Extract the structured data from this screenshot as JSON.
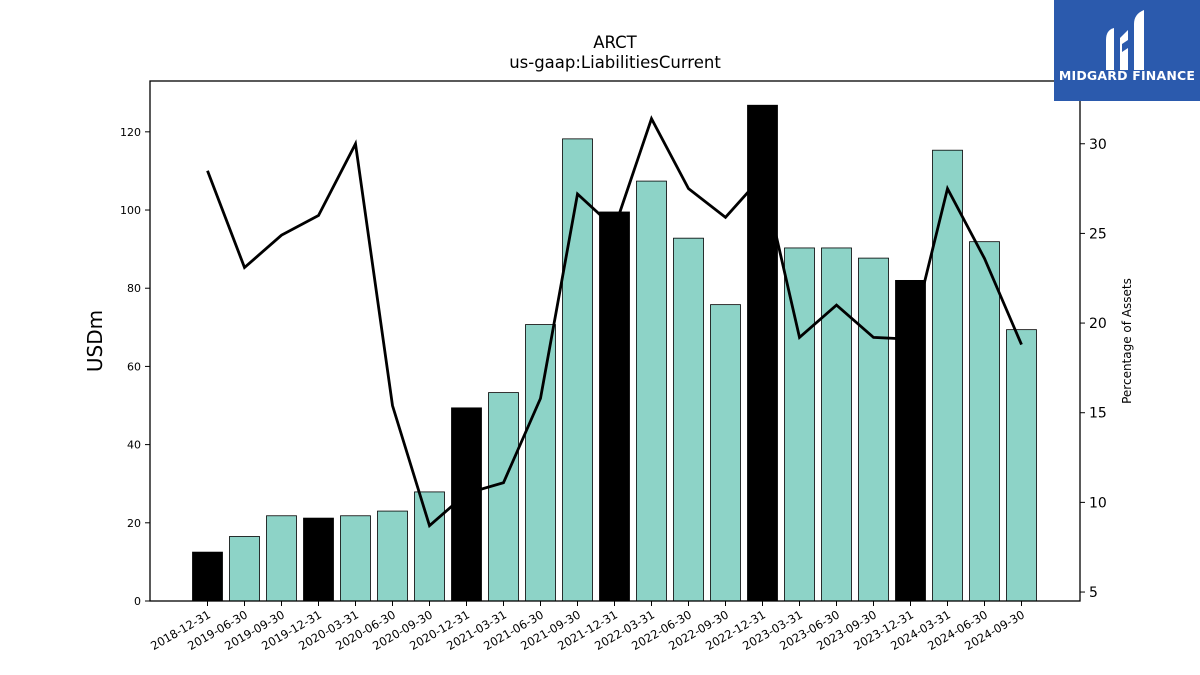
{
  "brand": {
    "name": "MIDGARD FINANCE",
    "logo_icon": "midgard-logo-icon",
    "background": "#2b5aad"
  },
  "chart_data": {
    "type": "bar",
    "title": "ARCT",
    "subtitle": "us-gaap:LiabilitiesCurrent",
    "ylabel": "USDm",
    "y2label": "Percentage of Assets",
    "ylim": [
      0,
      133
    ],
    "y2lim": [
      4.5,
      33.5
    ],
    "yticks": [
      0,
      20,
      40,
      60,
      80,
      100,
      120
    ],
    "y2ticks": [
      5,
      10,
      15,
      20,
      25,
      30
    ],
    "colors": {
      "quarter_bar": "#8dd3c7",
      "year_end_bar": "#000000",
      "line": "#000000"
    },
    "categories": [
      "2018-12-31",
      "2019-06-30",
      "2019-09-30",
      "2019-12-31",
      "2020-03-31",
      "2020-06-30",
      "2020-09-30",
      "2020-12-31",
      "2021-03-31",
      "2021-06-30",
      "2021-09-30",
      "2021-12-31",
      "2022-03-31",
      "2022-06-30",
      "2022-09-30",
      "2022-12-31",
      "2023-03-31",
      "2023-06-30",
      "2023-09-30",
      "2023-12-31",
      "2024-03-31",
      "2024-06-30",
      "2024-09-30"
    ],
    "series": [
      {
        "type": "bar",
        "values": [
          12.5,
          16.5,
          21.8,
          21.2,
          21.8,
          23.0,
          27.9,
          49.4,
          53.3,
          70.7,
          118.2,
          99.5,
          107.4,
          92.8,
          75.8,
          126.8,
          90.3,
          90.3,
          87.7,
          82.0,
          115.3,
          91.9,
          69.4
        ],
        "year_end": [
          true,
          false,
          false,
          true,
          false,
          false,
          false,
          true,
          false,
          false,
          false,
          true,
          false,
          false,
          false,
          true,
          false,
          false,
          false,
          true,
          false,
          false,
          false
        ]
      },
      {
        "type": "line",
        "axis": "right",
        "values": [
          28.5,
          23.1,
          24.9,
          26.0,
          30.0,
          15.4,
          8.7,
          10.5,
          11.1,
          15.8,
          27.2,
          25.3,
          31.4,
          27.5,
          25.9,
          28.2,
          19.2,
          21.0,
          19.2,
          19.1,
          27.5,
          23.6,
          18.8
        ]
      }
    ],
    "grid": false
  }
}
